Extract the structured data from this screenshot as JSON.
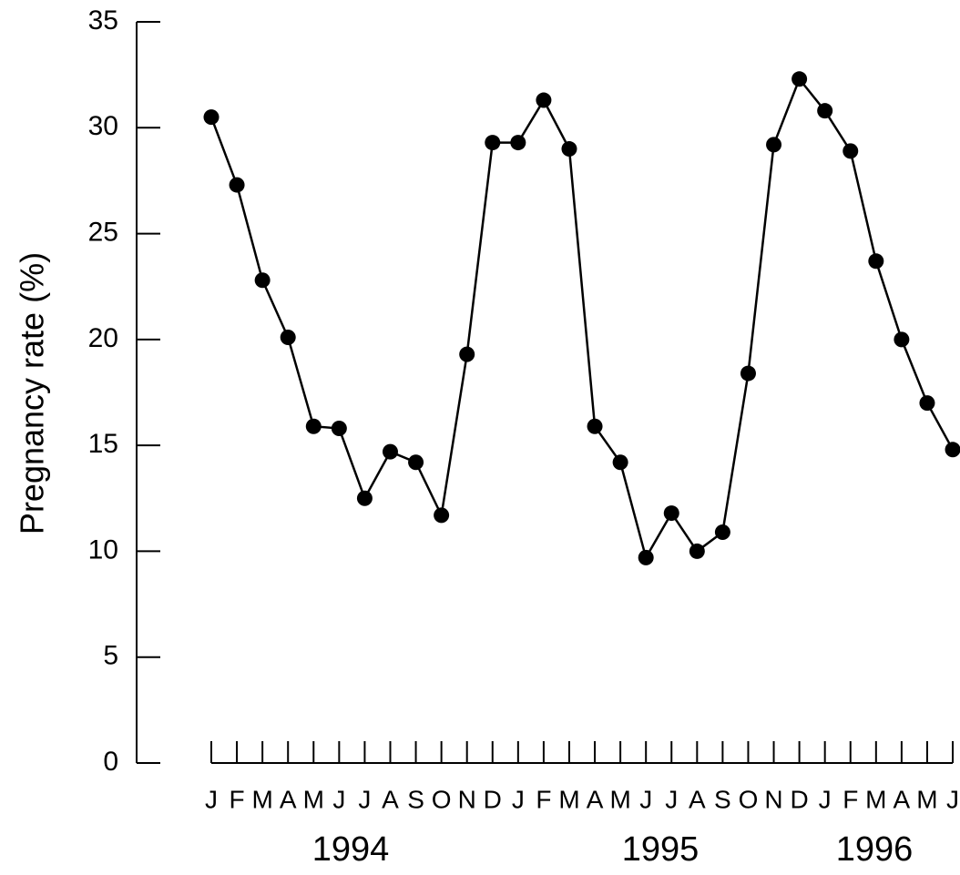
{
  "chart_data": {
    "type": "line",
    "y_label": "Pregnancy rate (%)",
    "categories": [
      "J",
      "F",
      "M",
      "A",
      "M",
      "J",
      "J",
      "A",
      "S",
      "O",
      "N",
      "D",
      "J",
      "F",
      "M",
      "A",
      "M",
      "J",
      "J",
      "A",
      "S",
      "O",
      "N",
      "D",
      "J",
      "F",
      "M",
      "A",
      "M",
      "J"
    ],
    "year_labels": [
      "1994",
      "1995",
      "1996"
    ],
    "series": [
      {
        "name": null,
        "color": "#000000",
        "values": [
          30.5,
          27.3,
          22.8,
          20.1,
          15.9,
          15.8,
          12.5,
          14.7,
          14.2,
          11.7,
          19.3,
          29.3,
          29.3,
          31.3,
          29.0,
          15.9,
          14.2,
          9.7,
          11.8,
          10.0,
          10.9,
          18.4,
          29.2,
          32.3,
          30.8,
          28.9,
          23.7,
          20.0,
          17.0,
          14.8
        ]
      }
    ],
    "ylim": [
      0,
      35
    ],
    "yticks": [
      0,
      5,
      10,
      15,
      20,
      25,
      30,
      35
    ],
    "grid": false
  }
}
